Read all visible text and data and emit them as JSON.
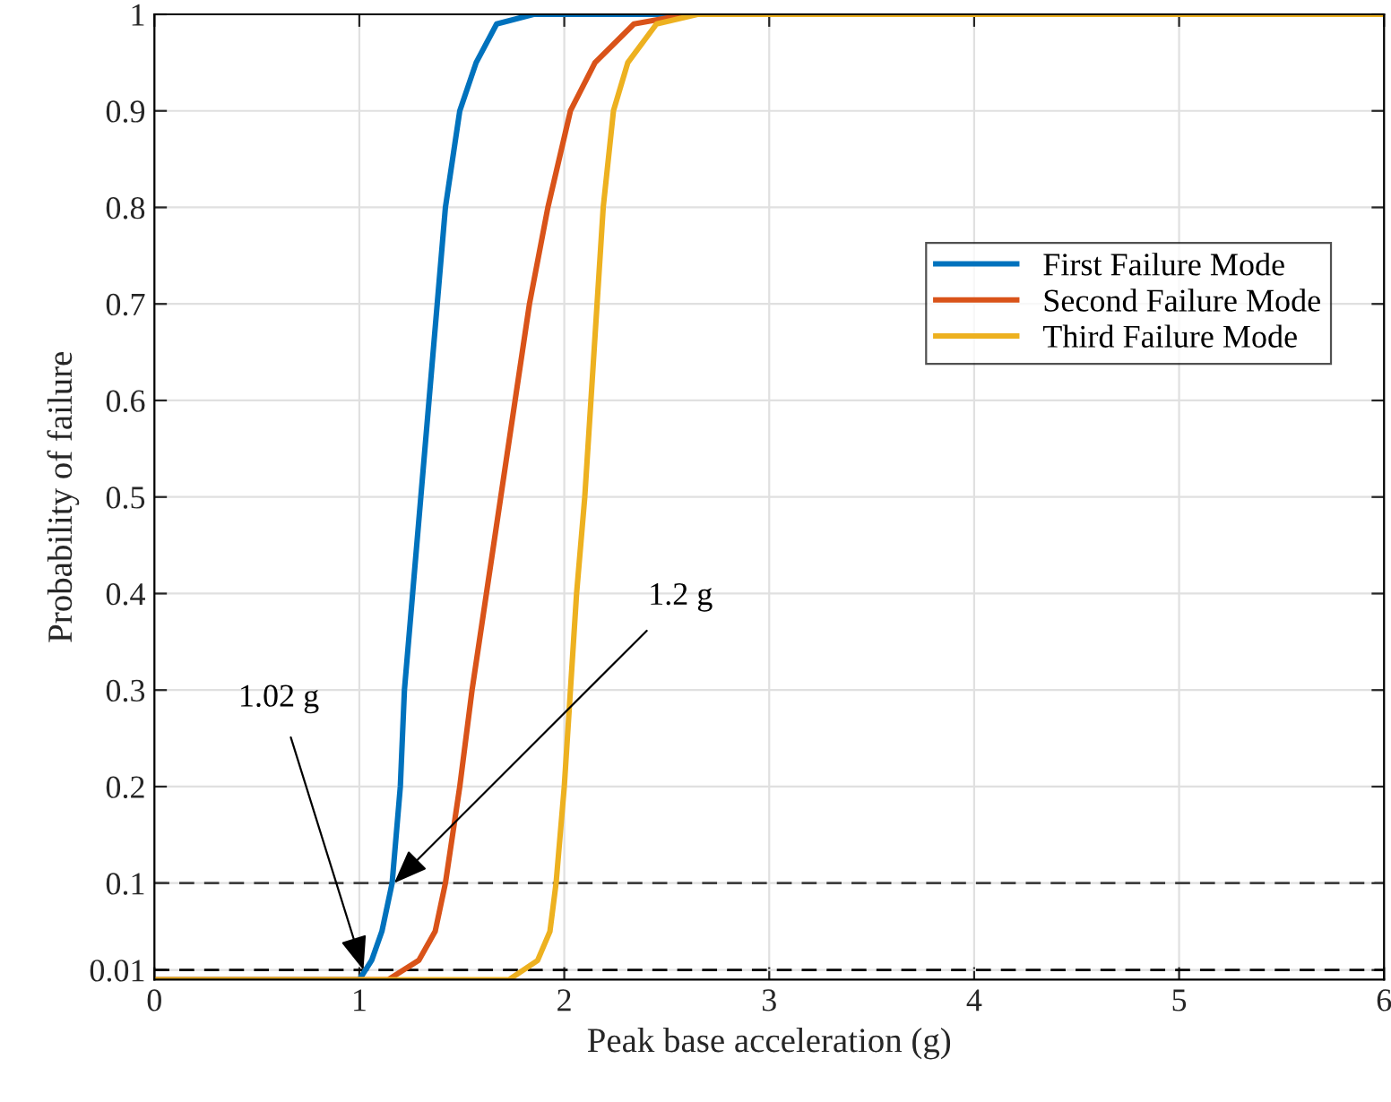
{
  "chart_data": {
    "type": "line",
    "xlabel": "Peak base acceleration (g)",
    "ylabel": "Probability of failure",
    "xlim": [
      0,
      6
    ],
    "ylim": [
      0,
      1
    ],
    "xticks": [
      0,
      1,
      2,
      3,
      4,
      5,
      6
    ],
    "yticks": [
      0.01,
      0.1,
      0.2,
      0.3,
      0.4,
      0.5,
      0.6,
      0.7,
      0.8,
      0.9,
      1
    ],
    "grid": true,
    "legend": "upper right",
    "marker": "none",
    "line_style": "solid",
    "series": [
      {
        "name": "First Failure Mode",
        "color": "#0072bd",
        "x": [
          0,
          1.0,
          1.06,
          1.11,
          1.16,
          1.2,
          1.22,
          1.26,
          1.3,
          1.34,
          1.38,
          1.42,
          1.49,
          1.57,
          1.67,
          1.85,
          6
        ],
        "values": [
          0,
          0,
          0.02,
          0.05,
          0.1,
          0.2,
          0.3,
          0.4,
          0.5,
          0.6,
          0.7,
          0.8,
          0.9,
          0.95,
          0.99,
          1,
          1
        ]
      },
      {
        "name": "Second Failure Mode",
        "color": "#d95319",
        "x": [
          0,
          1.14,
          1.29,
          1.37,
          1.42,
          1.49,
          1.55,
          1.62,
          1.69,
          1.76,
          1.83,
          1.92,
          2.03,
          2.15,
          2.34,
          2.6,
          6
        ],
        "values": [
          0,
          0,
          0.02,
          0.05,
          0.1,
          0.2,
          0.3,
          0.4,
          0.5,
          0.6,
          0.7,
          0.8,
          0.9,
          0.95,
          0.99,
          1,
          1
        ]
      },
      {
        "name": "Third Failure Mode",
        "color": "#edb120",
        "x": [
          0,
          1.73,
          1.87,
          1.93,
          1.96,
          2.0,
          2.03,
          2.06,
          2.1,
          2.13,
          2.16,
          2.19,
          2.24,
          2.31,
          2.45,
          2.65,
          6
        ],
        "values": [
          0,
          0,
          0.02,
          0.05,
          0.1,
          0.2,
          0.3,
          0.4,
          0.5,
          0.6,
          0.7,
          0.8,
          0.9,
          0.95,
          0.99,
          1,
          1
        ]
      }
    ],
    "ref_lines": [
      {
        "axis": "y",
        "value": 0.1,
        "color": "#404040",
        "line_style": "dashed"
      },
      {
        "axis": "y",
        "value": 0.01,
        "color": "#000000",
        "line_style": "dashed"
      }
    ],
    "annotations": [
      {
        "text": "1.02 g",
        "x": 1.02,
        "y": 0.01
      },
      {
        "text": "1.2 g",
        "x": 1.17,
        "y": 0.1
      }
    ]
  }
}
